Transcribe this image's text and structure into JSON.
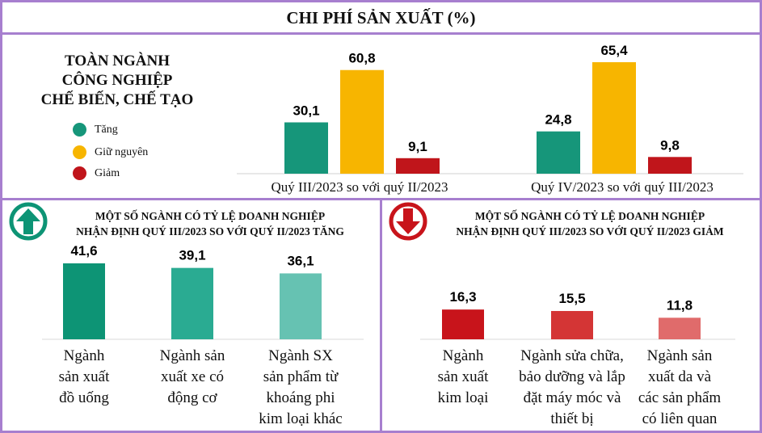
{
  "title": "CHI PHÍ SẢN XUẤT (%)",
  "industry_title": [
    "TOÀN NGÀNH",
    "CÔNG NGHIỆP",
    "CHẾ BIẾN, CHẾ TẠO"
  ],
  "legend": [
    {
      "label": "Tăng",
      "color": "#16967a"
    },
    {
      "label": "Giữ nguyên",
      "color": "#f7b500"
    },
    {
      "label": "Giảm",
      "color": "#c0151b"
    }
  ],
  "chart_data": [
    {
      "type": "bar",
      "categories": [
        "Quý III/2023 so với quý II/2023",
        "Quý IV/2023 so với quý III/2023"
      ],
      "series": [
        {
          "name": "Tăng",
          "values": [
            30.1,
            24.8
          ]
        },
        {
          "name": "Giữ nguyên",
          "values": [
            60.8,
            65.4
          ]
        },
        {
          "name": "Giảm",
          "values": [
            9.1,
            9.8
          ]
        }
      ],
      "value_labels": [
        [
          "30,1",
          "60,8",
          "9,1"
        ],
        [
          "24,8",
          "65,4",
          "9,8"
        ]
      ],
      "colors": [
        "#16967a",
        "#f7b500",
        "#c0151b"
      ]
    },
    {
      "type": "bar",
      "heading": [
        "MỘT SỐ NGÀNH CÓ TỶ LỆ DOANH NGHIỆP",
        "NHẬN ĐỊNH QUÝ III/2023 SO VỚI QUÝ II/2023 TĂNG"
      ],
      "categories": [
        [
          "Ngành",
          "sản xuất",
          "đồ uống"
        ],
        [
          "Ngành sản",
          "xuất xe có",
          "động cơ"
        ],
        [
          "Ngành SX",
          "sản phẩm từ",
          "khoáng phi",
          "kim loại khác"
        ]
      ],
      "values": [
        41.6,
        39.1,
        36.1
      ],
      "value_labels": [
        "41,6",
        "39,1",
        "36,1"
      ],
      "colors": [
        "#0d9475",
        "#2aab92",
        "#66c2b2"
      ]
    },
    {
      "type": "bar",
      "heading": [
        "MỘT SỐ NGÀNH CÓ TỶ LỆ DOANH NGHIỆP",
        "NHẬN ĐỊNH QUÝ III/2023 SO VỚI QUÝ II/2023 GIẢM"
      ],
      "categories": [
        [
          "Ngành",
          "sản xuất",
          "kim loại"
        ],
        [
          "Ngành sửa chữa,",
          "bảo dưỡng và lắp",
          "đặt máy móc và",
          "thiết bị"
        ],
        [
          "Ngành sản",
          "xuất da và",
          "các sản phẩm",
          "có liên quan"
        ]
      ],
      "values": [
        16.3,
        15.5,
        11.8
      ],
      "value_labels": [
        "16,3",
        "15,5",
        "11,8"
      ],
      "colors": [
        "#c8141b",
        "#d43535",
        "#e06b6b"
      ]
    }
  ],
  "icons": {
    "up": "arrow-up-circle-icon",
    "down": "arrow-down-circle-icon"
  }
}
